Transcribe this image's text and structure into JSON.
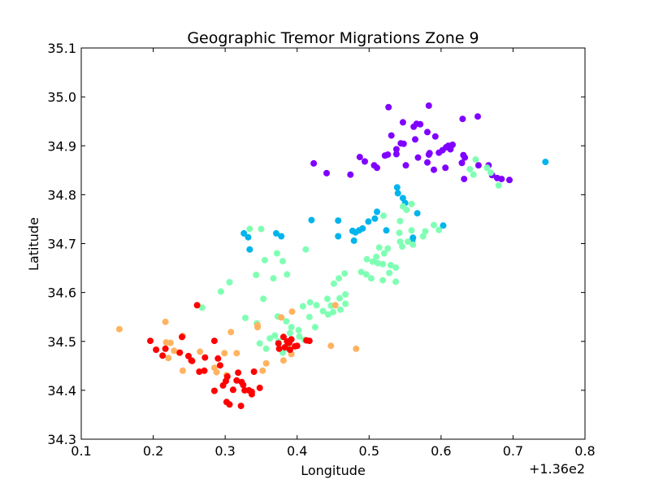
{
  "chart_data": {
    "type": "scatter",
    "title": "Geographic Tremor Migrations Zone 9",
    "xlabel": "Longitude",
    "ylabel": "Latitude",
    "x_offset_label": "+1.36e2",
    "xlim": [
      0.1,
      0.8
    ],
    "ylim": [
      34.3,
      35.1
    ],
    "xticks": [
      "0.1",
      "0.2",
      "0.3",
      "0.4",
      "0.5",
      "0.6",
      "0.7",
      "0.8"
    ],
    "yticks": [
      "34.3",
      "34.4",
      "34.5",
      "34.6",
      "34.7",
      "34.8",
      "34.9",
      "35.0",
      "35.1"
    ],
    "grid": false,
    "legend": "none",
    "series": [
      {
        "color": "#8000ff",
        "points": [
          [
            0.527,
            34.979
          ],
          [
            0.583,
            34.982
          ],
          [
            0.651,
            34.96
          ],
          [
            0.63,
            34.955
          ],
          [
            0.547,
            34.948
          ],
          [
            0.566,
            34.945
          ],
          [
            0.571,
            34.944
          ],
          [
            0.562,
            34.939
          ],
          [
            0.581,
            34.928
          ],
          [
            0.531,
            34.921
          ],
          [
            0.592,
            34.919
          ],
          [
            0.564,
            34.913
          ],
          [
            0.544,
            34.905
          ],
          [
            0.548,
            34.904
          ],
          [
            0.616,
            34.902
          ],
          [
            0.61,
            34.9
          ],
          [
            0.607,
            34.897
          ],
          [
            0.538,
            34.893
          ],
          [
            0.613,
            34.893
          ],
          [
            0.602,
            34.891
          ],
          [
            0.597,
            34.886
          ],
          [
            0.584,
            34.885
          ],
          [
            0.583,
            34.882
          ],
          [
            0.631,
            34.881
          ],
          [
            0.522,
            34.88
          ],
          [
            0.526,
            34.882
          ],
          [
            0.538,
            34.883
          ],
          [
            0.487,
            34.877
          ],
          [
            0.568,
            34.876
          ],
          [
            0.633,
            34.876
          ],
          [
            0.494,
            34.868
          ],
          [
            0.581,
            34.866
          ],
          [
            0.629,
            34.865
          ],
          [
            0.423,
            34.864
          ],
          [
            0.652,
            34.86
          ],
          [
            0.551,
            34.86
          ],
          [
            0.666,
            34.86
          ],
          [
            0.507,
            34.86
          ],
          [
            0.511,
            34.855
          ],
          [
            0.606,
            34.855
          ],
          [
            0.59,
            34.851
          ],
          [
            0.441,
            34.844
          ],
          [
            0.474,
            34.841
          ],
          [
            0.671,
            34.84
          ],
          [
            0.678,
            34.834
          ],
          [
            0.632,
            34.832
          ],
          [
            0.684,
            34.832
          ],
          [
            0.695,
            34.83
          ]
        ]
      },
      {
        "color": "#00b4ec",
        "points": [
          [
            0.745,
            34.867
          ],
          [
            0.539,
            34.815
          ],
          [
            0.54,
            34.803
          ],
          [
            0.547,
            34.793
          ],
          [
            0.55,
            34.783
          ],
          [
            0.567,
            34.762
          ],
          [
            0.511,
            34.765
          ],
          [
            0.508,
            34.751
          ],
          [
            0.457,
            34.747
          ],
          [
            0.42,
            34.748
          ],
          [
            0.499,
            34.745
          ],
          [
            0.603,
            34.737
          ],
          [
            0.491,
            34.731
          ],
          [
            0.486,
            34.727
          ],
          [
            0.477,
            34.726
          ],
          [
            0.524,
            34.727
          ],
          [
            0.481,
            34.723
          ],
          [
            0.326,
            34.721
          ],
          [
            0.371,
            34.721
          ],
          [
            0.332,
            34.713
          ],
          [
            0.378,
            34.715
          ],
          [
            0.457,
            34.715
          ],
          [
            0.561,
            34.712
          ],
          [
            0.479,
            34.706
          ],
          [
            0.56,
            34.706
          ],
          [
            0.334,
            34.688
          ]
        ]
      },
      {
        "color": "#80ffb4",
        "points": [
          [
            0.648,
            34.872
          ],
          [
            0.64,
            34.852
          ],
          [
            0.669,
            34.845
          ],
          [
            0.68,
            34.819
          ],
          [
            0.664,
            34.855
          ],
          [
            0.645,
            34.841
          ],
          [
            0.547,
            34.776
          ],
          [
            0.552,
            34.769
          ],
          [
            0.559,
            34.781
          ],
          [
            0.52,
            34.757
          ],
          [
            0.543,
            34.746
          ],
          [
            0.597,
            34.728
          ],
          [
            0.559,
            34.727
          ],
          [
            0.542,
            34.722
          ],
          [
            0.578,
            34.725
          ],
          [
            0.59,
            34.738
          ],
          [
            0.575,
            34.715
          ],
          [
            0.543,
            34.704
          ],
          [
            0.554,
            34.704
          ],
          [
            0.561,
            34.698
          ],
          [
            0.546,
            34.694
          ],
          [
            0.514,
            34.692
          ],
          [
            0.526,
            34.69
          ],
          [
            0.521,
            34.68
          ],
          [
            0.51,
            34.673
          ],
          [
            0.497,
            34.668
          ],
          [
            0.505,
            34.663
          ],
          [
            0.512,
            34.66
          ],
          [
            0.519,
            34.658
          ],
          [
            0.53,
            34.656
          ],
          [
            0.537,
            34.651
          ],
          [
            0.528,
            34.64
          ],
          [
            0.496,
            34.637
          ],
          [
            0.503,
            34.629
          ],
          [
            0.519,
            34.625
          ],
          [
            0.537,
            34.622
          ],
          [
            0.489,
            34.642
          ],
          [
            0.466,
            34.639
          ],
          [
            0.458,
            34.629
          ],
          [
            0.451,
            34.618
          ],
          [
            0.467,
            34.596
          ],
          [
            0.459,
            34.588
          ],
          [
            0.442,
            34.587
          ],
          [
            0.447,
            34.573
          ],
          [
            0.427,
            34.574
          ],
          [
            0.45,
            34.56
          ],
          [
            0.46,
            34.565
          ],
          [
            0.467,
            34.577
          ],
          [
            0.436,
            34.562
          ],
          [
            0.443,
            34.555
          ],
          [
            0.417,
            34.55
          ],
          [
            0.425,
            34.529
          ],
          [
            0.392,
            34.529
          ],
          [
            0.402,
            34.523
          ],
          [
            0.39,
            34.517
          ],
          [
            0.403,
            34.51
          ],
          [
            0.41,
            34.503
          ],
          [
            0.388,
            34.485
          ],
          [
            0.38,
            34.477
          ],
          [
            0.369,
            34.512
          ],
          [
            0.362,
            34.506
          ],
          [
            0.374,
            34.5
          ],
          [
            0.348,
            34.496
          ],
          [
            0.357,
            34.485
          ],
          [
            0.344,
            34.537
          ],
          [
            0.373,
            34.551
          ],
          [
            0.385,
            34.541
          ],
          [
            0.408,
            34.572
          ],
          [
            0.418,
            34.58
          ],
          [
            0.353,
            34.587
          ],
          [
            0.328,
            34.548
          ],
          [
            0.306,
            34.621
          ],
          [
            0.294,
            34.602
          ],
          [
            0.343,
            34.636
          ],
          [
            0.367,
            34.629
          ],
          [
            0.355,
            34.666
          ],
          [
            0.372,
            34.68
          ],
          [
            0.38,
            34.664
          ],
          [
            0.386,
            34.637
          ],
          [
            0.412,
            34.688
          ],
          [
            0.334,
            34.73
          ],
          [
            0.35,
            34.73
          ],
          [
            0.268,
            34.569
          ]
        ]
      },
      {
        "color": "#ffb360",
        "points": [
          [
            0.153,
            34.525
          ],
          [
            0.217,
            34.54
          ],
          [
            0.241,
            34.511
          ],
          [
            0.218,
            34.498
          ],
          [
            0.224,
            34.497
          ],
          [
            0.229,
            34.481
          ],
          [
            0.236,
            34.477
          ],
          [
            0.221,
            34.466
          ],
          [
            0.241,
            34.44
          ],
          [
            0.265,
            34.479
          ],
          [
            0.285,
            34.446
          ],
          [
            0.288,
            34.437
          ],
          [
            0.302,
            34.431
          ],
          [
            0.299,
            34.476
          ],
          [
            0.308,
            34.519
          ],
          [
            0.316,
            34.476
          ],
          [
            0.345,
            34.533
          ],
          [
            0.352,
            34.44
          ],
          [
            0.357,
            34.455
          ],
          [
            0.378,
            34.549
          ],
          [
            0.393,
            34.561
          ],
          [
            0.381,
            34.461
          ],
          [
            0.392,
            34.474
          ],
          [
            0.447,
            34.491
          ],
          [
            0.453,
            34.574
          ],
          [
            0.482,
            34.485
          ],
          [
            0.345,
            34.529
          ]
        ]
      },
      {
        "color": "#ff0000",
        "points": [
          [
            0.261,
            34.574
          ],
          [
            0.196,
            34.501
          ],
          [
            0.204,
            34.483
          ],
          [
            0.217,
            34.485
          ],
          [
            0.213,
            34.471
          ],
          [
            0.24,
            34.509
          ],
          [
            0.249,
            34.47
          ],
          [
            0.253,
            34.461
          ],
          [
            0.237,
            34.477
          ],
          [
            0.254,
            34.46
          ],
          [
            0.272,
            34.467
          ],
          [
            0.264,
            34.438
          ],
          [
            0.271,
            34.44
          ],
          [
            0.285,
            34.501
          ],
          [
            0.29,
            34.465
          ],
          [
            0.293,
            34.451
          ],
          [
            0.303,
            34.428
          ],
          [
            0.301,
            34.419
          ],
          [
            0.297,
            34.41
          ],
          [
            0.311,
            34.401
          ],
          [
            0.302,
            34.376
          ],
          [
            0.306,
            34.371
          ],
          [
            0.285,
            34.399
          ],
          [
            0.318,
            34.436
          ],
          [
            0.323,
            34.417
          ],
          [
            0.325,
            34.411
          ],
          [
            0.327,
            34.4
          ],
          [
            0.322,
            34.368
          ],
          [
            0.337,
            34.392
          ],
          [
            0.337,
            34.397
          ],
          [
            0.34,
            34.438
          ],
          [
            0.348,
            34.405
          ],
          [
            0.374,
            34.496
          ],
          [
            0.381,
            34.509
          ],
          [
            0.386,
            34.5
          ],
          [
            0.389,
            34.497
          ],
          [
            0.39,
            34.483
          ],
          [
            0.397,
            34.49
          ],
          [
            0.392,
            34.504
          ],
          [
            0.383,
            34.488
          ],
          [
            0.375,
            34.485
          ],
          [
            0.4,
            34.491
          ],
          [
            0.413,
            34.502
          ],
          [
            0.417,
            34.501
          ],
          [
            0.333,
            34.4
          ],
          [
            0.316,
            34.42
          ]
        ]
      }
    ]
  }
}
